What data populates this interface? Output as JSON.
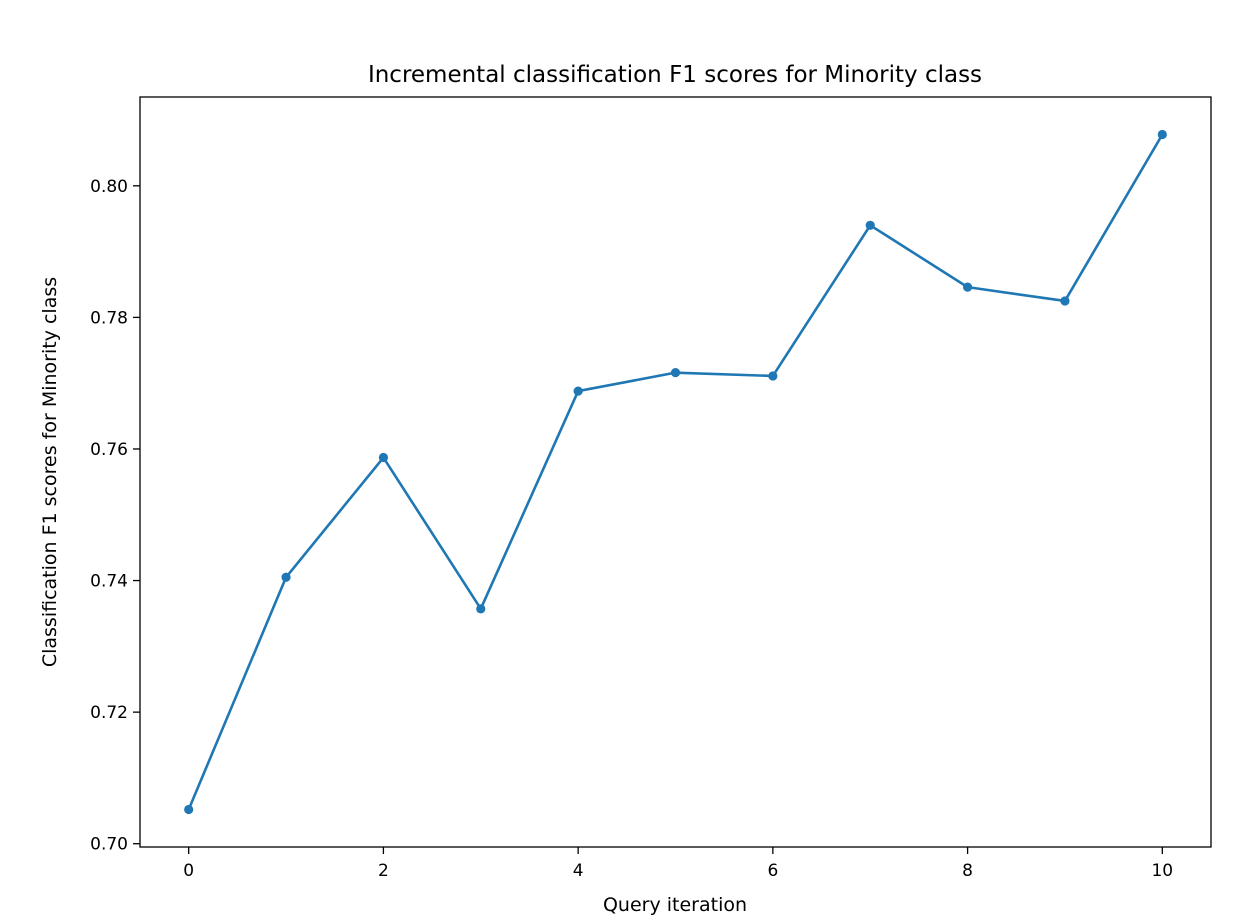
{
  "chart_data": {
    "type": "line",
    "title": "Incremental classification F1 scores for Minority class",
    "xlabel": "Query iteration",
    "ylabel": "Classification F1 scores for Minority class",
    "x": [
      0,
      1,
      2,
      3,
      4,
      5,
      6,
      7,
      8,
      9,
      10
    ],
    "series": [
      {
        "values": [
          0.7052,
          0.7405,
          0.7587,
          0.7357,
          0.7688,
          0.7716,
          0.7711,
          0.794,
          0.7846,
          0.7825,
          0.8078
        ]
      }
    ],
    "xlim": [
      -0.5,
      10.5
    ],
    "ylim": [
      0.6995,
      0.8135
    ],
    "xticks": [
      0,
      2,
      4,
      6,
      8,
      10
    ],
    "xtick_labels": [
      "0",
      "2",
      "4",
      "6",
      "8",
      "10"
    ],
    "yticks": [
      0.7,
      0.72,
      0.74,
      0.76,
      0.78,
      0.8
    ],
    "ytick_labels": [
      "0.70",
      "0.72",
      "0.74",
      "0.76",
      "0.78",
      "0.80"
    ],
    "grid": false,
    "markers": true,
    "line_color": "#1f77b4"
  }
}
